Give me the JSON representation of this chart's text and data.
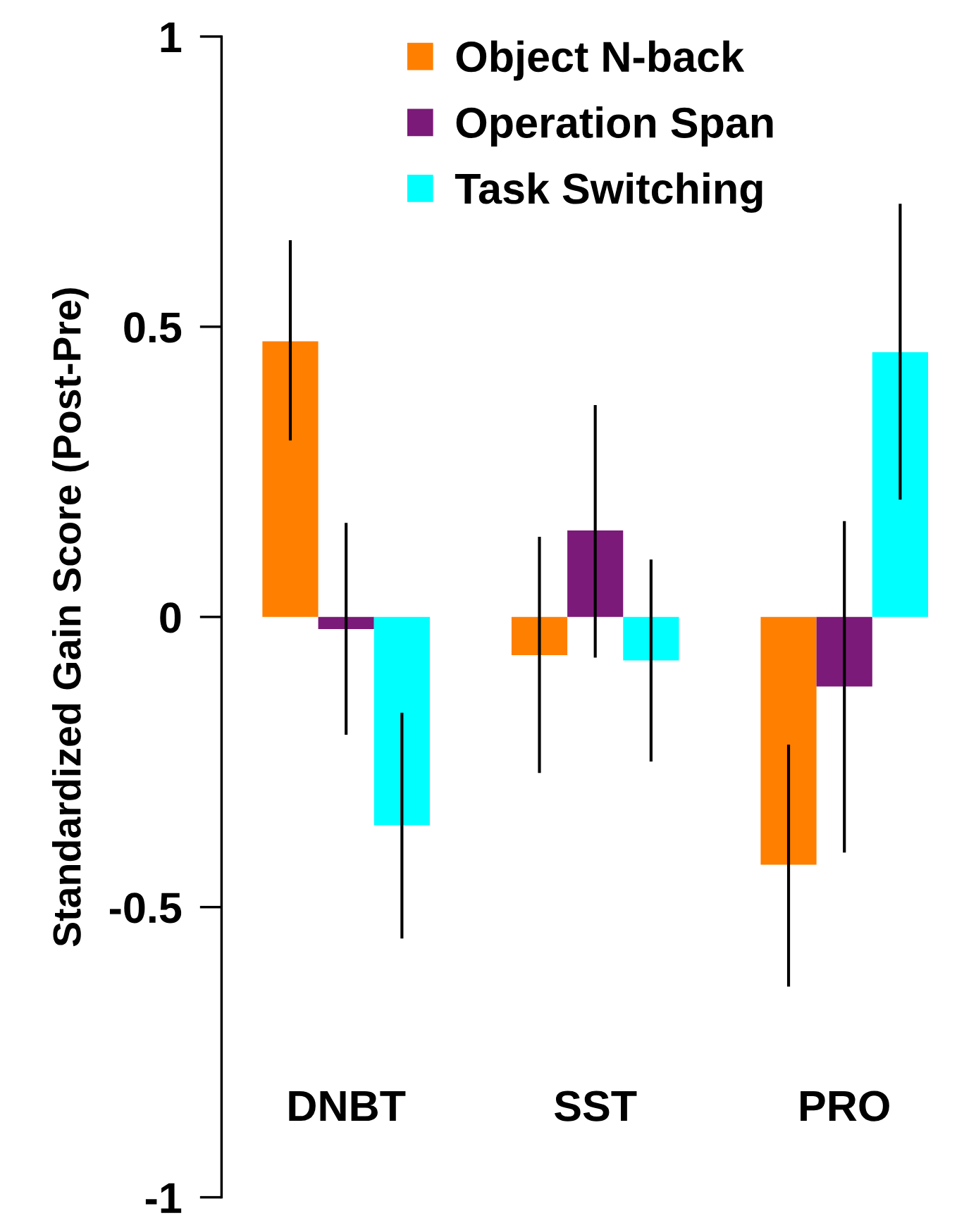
{
  "chart_data": {
    "type": "bar",
    "ylabel": "Standardized Gain Score (Post-Pre)",
    "categories": [
      "DNBT",
      "SST",
      "PRO"
    ],
    "series": [
      {
        "name": "Object N-back",
        "color": "#ff7f00",
        "values": [
          0.475,
          -0.066,
          -0.427
        ],
        "errors": [
          [
            0.304,
            0.649
          ],
          [
            -0.269,
            0.138
          ],
          [
            -0.637,
            -0.22
          ]
        ]
      },
      {
        "name": "Operation Span",
        "color": "#7b1a78",
        "values": [
          -0.021,
          0.149,
          -0.12
        ],
        "errors": [
          [
            -0.203,
            0.162
          ],
          [
            -0.07,
            0.365
          ],
          [
            -0.406,
            0.165
          ]
        ]
      },
      {
        "name": "Task Switching",
        "color": "#00ffff",
        "values": [
          -0.359,
          -0.075,
          0.456
        ],
        "errors": [
          [
            -0.554,
            -0.165
          ],
          [
            -0.249,
            0.099
          ],
          [
            0.202,
            0.712
          ]
        ]
      }
    ],
    "ylim": [
      -1,
      1
    ],
    "yticks": [
      -1,
      -0.5,
      0,
      0.5,
      1
    ],
    "grid": false,
    "legend": "top"
  }
}
